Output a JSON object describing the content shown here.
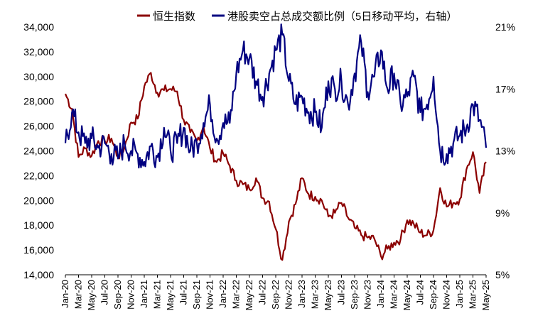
{
  "chart_data": {
    "type": "line",
    "title": "",
    "legend": {
      "placement": "top",
      "entries": [
        {
          "label": "恒生指数",
          "color": "#8B0000",
          "axis": "left"
        },
        {
          "label": "港股卖空占总成交额比例（5日移动平均，右轴）",
          "color": "#000080",
          "axis": "right"
        }
      ]
    },
    "x_tick_labels": [
      "Jan-20",
      "Mar-20",
      "May-20",
      "Jul-20",
      "Sep-20",
      "Nov-20",
      "Jan-21",
      "Mar-21",
      "May-21",
      "Jul-21",
      "Sep-21",
      "Nov-21",
      "Jan-22",
      "Mar-22",
      "May-22",
      "Jul-22",
      "Sep-22",
      "Nov-22",
      "Jan-23",
      "Mar-23",
      "May-23",
      "Jul-23",
      "Sep-23",
      "Nov-23",
      "Jan-24",
      "Mar-24",
      "May-24",
      "Jul-24",
      "Sep-24",
      "Nov-24",
      "Jan-25",
      "Mar-25",
      "May-25"
    ],
    "y_left": {
      "ylim": [
        14000,
        34000
      ],
      "ticks": [
        14000,
        16000,
        18000,
        20000,
        22000,
        24000,
        26000,
        28000,
        30000,
        32000,
        34000
      ],
      "tick_labels": [
        "14,000",
        "16,000",
        "18,000",
        "20,000",
        "22,000",
        "24,000",
        "26,000",
        "28,000",
        "30,000",
        "32,000",
        "34,000"
      ]
    },
    "y_right": {
      "ylim": [
        5,
        21
      ],
      "ticks": [
        5,
        9,
        13,
        17,
        21
      ],
      "tick_labels": [
        "5%",
        "9%",
        "13%",
        "17%",
        "21%"
      ],
      "unit": "%"
    },
    "grid": false,
    "series": [
      {
        "name": "恒生指数",
        "axis": "left",
        "color": "#8B0000",
        "x": [
          "2020-01",
          "2020-02",
          "2020-03",
          "2020-04",
          "2020-05",
          "2020-06",
          "2020-07",
          "2020-08",
          "2020-09",
          "2020-10",
          "2020-11",
          "2020-12",
          "2021-01",
          "2021-02",
          "2021-03",
          "2021-04",
          "2021-05",
          "2021-06",
          "2021-07",
          "2021-08",
          "2021-09",
          "2021-10",
          "2021-11",
          "2021-12",
          "2022-01",
          "2022-02",
          "2022-03",
          "2022-04",
          "2022-05",
          "2022-06",
          "2022-07",
          "2022-08",
          "2022-09",
          "2022-10",
          "2022-11",
          "2022-12",
          "2023-01",
          "2023-02",
          "2023-03",
          "2023-04",
          "2023-05",
          "2023-06",
          "2023-07",
          "2023-08",
          "2023-09",
          "2023-10",
          "2023-11",
          "2023-12",
          "2024-01",
          "2024-02",
          "2024-03",
          "2024-04",
          "2024-05",
          "2024-06",
          "2024-07",
          "2024-08",
          "2024-09",
          "2024-10",
          "2024-11",
          "2024-12",
          "2025-01",
          "2025-02",
          "2025-03",
          "2025-04",
          "2025-05"
        ],
        "values": [
          28600,
          27400,
          23500,
          24200,
          23600,
          24800,
          24800,
          25000,
          23500,
          24300,
          26300,
          26600,
          29200,
          30300,
          28700,
          28900,
          29000,
          28800,
          26500,
          25500,
          24800,
          26000,
          24200,
          23100,
          23800,
          22800,
          21600,
          21300,
          20900,
          21800,
          20200,
          19900,
          17700,
          15200,
          18300,
          19700,
          21800,
          20500,
          20300,
          20000,
          18700,
          19000,
          19800,
          18600,
          17800,
          17200,
          17000,
          16900,
          15500,
          16100,
          16600,
          16900,
          18400,
          18100,
          17400,
          17200,
          17600,
          21000,
          19500,
          19800,
          20100,
          22500,
          23900,
          20600,
          23100
        ]
      },
      {
        "name": "港股卖空占总成交额比例（5日移动平均，右轴）",
        "axis": "right",
        "color": "#000080",
        "x": [
          "2020-01",
          "2020-02",
          "2020-03",
          "2020-04",
          "2020-05",
          "2020-06",
          "2020-07",
          "2020-08",
          "2020-09",
          "2020-10",
          "2020-11",
          "2020-12",
          "2021-01",
          "2021-02",
          "2021-03",
          "2021-04",
          "2021-05",
          "2021-06",
          "2021-07",
          "2021-08",
          "2021-09",
          "2021-10",
          "2021-11",
          "2021-12",
          "2022-01",
          "2022-02",
          "2022-03",
          "2022-04",
          "2022-05",
          "2022-06",
          "2022-07",
          "2022-08",
          "2022-09",
          "2022-10",
          "2022-11",
          "2022-12",
          "2023-01",
          "2023-02",
          "2023-03",
          "2023-04",
          "2023-05",
          "2023-06",
          "2023-07",
          "2023-08",
          "2023-09",
          "2023-10",
          "2023-11",
          "2023-12",
          "2024-01",
          "2024-02",
          "2024-03",
          "2024-04",
          "2024-05",
          "2024-06",
          "2024-07",
          "2024-08",
          "2024-09",
          "2024-10",
          "2024-11",
          "2024-12",
          "2025-01",
          "2025-02",
          "2025-03",
          "2025-04",
          "2025-05"
        ],
        "values": [
          13.5,
          15.5,
          14.2,
          13.5,
          13.8,
          13.2,
          13.5,
          12.8,
          12.5,
          13.5,
          13.0,
          12.8,
          12.3,
          13.3,
          12.6,
          14.5,
          13.0,
          13.5,
          14.5,
          13.0,
          13.5,
          14.8,
          16.0,
          13.8,
          14.8,
          14.8,
          18.0,
          19.5,
          19.0,
          17.5,
          16.5,
          18.0,
          19.5,
          20.5,
          17.5,
          16.0,
          16.5,
          15.5,
          15.5,
          14.5,
          17.5,
          17.0,
          17.5,
          16.0,
          18.0,
          20.0,
          16.8,
          17.8,
          19.5,
          17.0,
          18.0,
          16.0,
          16.5,
          17.8,
          15.5,
          16.0,
          17.8,
          13.0,
          12.8,
          13.5,
          14.0,
          14.5,
          16.0,
          15.0,
          13.2
        ]
      }
    ]
  }
}
